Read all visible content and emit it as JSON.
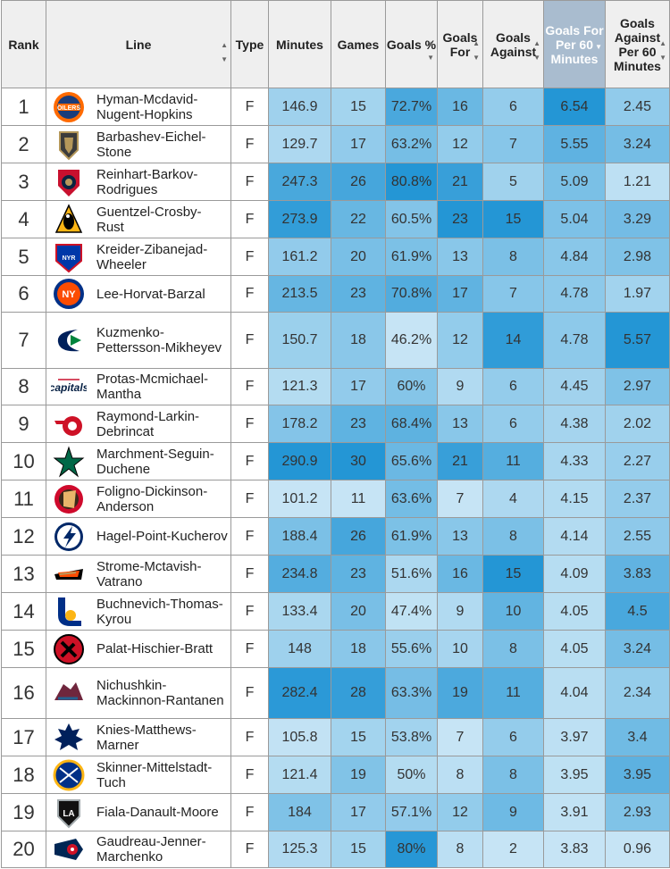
{
  "headers": {
    "rank": "Rank",
    "line": "Line",
    "type": "Type",
    "minutes": "Minutes",
    "games": "Games",
    "gpct": "Goals %",
    "gf": "Goals For",
    "ga": "Goals Against",
    "gf60": "Goals For Per 60 Minutes",
    "ga60": "Goals Against Per 60 Minutes"
  },
  "colors": {
    "sorted_header": "#a9bccf",
    "scale_low": "#e6f4fb",
    "scale_high": "#0e8bd1"
  },
  "rows": [
    {
      "rank": "1",
      "line": "Hyman-Mcdavid-Nugent-Hopkins",
      "team_icon": "oilers-logo-icon",
      "type": "F",
      "minutes": "146.9",
      "games": "15",
      "gpct": "72.7%",
      "gf": "16",
      "ga": "6",
      "gf60": "6.54",
      "ga60": "2.45"
    },
    {
      "rank": "2",
      "line": "Barbashev-Eichel-Stone",
      "team_icon": "golden-knights-logo-icon",
      "type": "F",
      "minutes": "129.7",
      "games": "17",
      "gpct": "63.2%",
      "gf": "12",
      "ga": "7",
      "gf60": "5.55",
      "ga60": "3.24"
    },
    {
      "rank": "3",
      "line": "Reinhart-Barkov-Rodrigues",
      "team_icon": "panthers-logo-icon",
      "type": "F",
      "minutes": "247.3",
      "games": "26",
      "gpct": "80.8%",
      "gf": "21",
      "ga": "5",
      "gf60": "5.09",
      "ga60": "1.21"
    },
    {
      "rank": "4",
      "line": "Guentzel-Crosby-Rust",
      "team_icon": "penguins-logo-icon",
      "type": "F",
      "minutes": "273.9",
      "games": "22",
      "gpct": "60.5%",
      "gf": "23",
      "ga": "15",
      "gf60": "5.04",
      "ga60": "3.29"
    },
    {
      "rank": "5",
      "line": "Kreider-Zibanejad-Wheeler",
      "team_icon": "rangers-logo-icon",
      "type": "F",
      "minutes": "161.2",
      "games": "20",
      "gpct": "61.9%",
      "gf": "13",
      "ga": "8",
      "gf60": "4.84",
      "ga60": "2.98"
    },
    {
      "rank": "6",
      "line": "Lee-Horvat-Barzal",
      "team_icon": "islanders-logo-icon",
      "type": "F",
      "minutes": "213.5",
      "games": "23",
      "gpct": "70.8%",
      "gf": "17",
      "ga": "7",
      "gf60": "4.78",
      "ga60": "1.97"
    },
    {
      "rank": "7",
      "line": "Kuzmenko-Pettersson-Mikheyev",
      "team_icon": "canucks-logo-icon",
      "type": "F",
      "minutes": "150.7",
      "games": "18",
      "gpct": "46.2%",
      "gf": "12",
      "ga": "14",
      "gf60": "4.78",
      "ga60": "5.57"
    },
    {
      "rank": "8",
      "line": "Protas-Mcmichael-Mantha",
      "team_icon": "capitals-logo-icon",
      "type": "F",
      "minutes": "121.3",
      "games": "17",
      "gpct": "60%",
      "gf": "9",
      "ga": "6",
      "gf60": "4.45",
      "ga60": "2.97"
    },
    {
      "rank": "9",
      "line": "Raymond-Larkin-Debrincat",
      "team_icon": "red-wings-logo-icon",
      "type": "F",
      "minutes": "178.2",
      "games": "23",
      "gpct": "68.4%",
      "gf": "13",
      "ga": "6",
      "gf60": "4.38",
      "ga60": "2.02"
    },
    {
      "rank": "10",
      "line": "Marchment-Seguin-Duchene",
      "team_icon": "stars-logo-icon",
      "type": "F",
      "minutes": "290.9",
      "games": "30",
      "gpct": "65.6%",
      "gf": "21",
      "ga": "11",
      "gf60": "4.33",
      "ga60": "2.27"
    },
    {
      "rank": "11",
      "line": "Foligno-Dickinson-Anderson",
      "team_icon": "blackhawks-logo-icon",
      "type": "F",
      "minutes": "101.2",
      "games": "11",
      "gpct": "63.6%",
      "gf": "7",
      "ga": "4",
      "gf60": "4.15",
      "ga60": "2.37"
    },
    {
      "rank": "12",
      "line": "Hagel-Point-Kucherov",
      "team_icon": "lightning-logo-icon",
      "type": "F",
      "minutes": "188.4",
      "games": "26",
      "gpct": "61.9%",
      "gf": "13",
      "ga": "8",
      "gf60": "4.14",
      "ga60": "2.55"
    },
    {
      "rank": "13",
      "line": "Strome-Mctavish-Vatrano",
      "team_icon": "ducks-logo-icon",
      "type": "F",
      "minutes": "234.8",
      "games": "23",
      "gpct": "51.6%",
      "gf": "16",
      "ga": "15",
      "gf60": "4.09",
      "ga60": "3.83"
    },
    {
      "rank": "14",
      "line": "Buchnevich-Thomas-Kyrou",
      "team_icon": "blues-logo-icon",
      "type": "F",
      "minutes": "133.4",
      "games": "20",
      "gpct": "47.4%",
      "gf": "9",
      "ga": "10",
      "gf60": "4.05",
      "ga60": "4.5"
    },
    {
      "rank": "15",
      "line": "Palat-Hischier-Bratt",
      "team_icon": "devils-logo-icon",
      "type": "F",
      "minutes": "148",
      "games": "18",
      "gpct": "55.6%",
      "gf": "10",
      "ga": "8",
      "gf60": "4.05",
      "ga60": "3.24"
    },
    {
      "rank": "16",
      "line": "Nichushkin-Mackinnon-Rantanen",
      "team_icon": "avalanche-logo-icon",
      "type": "F",
      "minutes": "282.4",
      "games": "28",
      "gpct": "63.3%",
      "gf": "19",
      "ga": "11",
      "gf60": "4.04",
      "ga60": "2.34"
    },
    {
      "rank": "17",
      "line": "Knies-Matthews-Marner",
      "team_icon": "maple-leafs-logo-icon",
      "type": "F",
      "minutes": "105.8",
      "games": "15",
      "gpct": "53.8%",
      "gf": "7",
      "ga": "6",
      "gf60": "3.97",
      "ga60": "3.4"
    },
    {
      "rank": "18",
      "line": "Skinner-Mittelstadt-Tuch",
      "team_icon": "sabres-logo-icon",
      "type": "F",
      "minutes": "121.4",
      "games": "19",
      "gpct": "50%",
      "gf": "8",
      "ga": "8",
      "gf60": "3.95",
      "ga60": "3.95"
    },
    {
      "rank": "19",
      "line": "Fiala-Danault-Moore",
      "team_icon": "kings-logo-icon",
      "type": "F",
      "minutes": "184",
      "games": "17",
      "gpct": "57.1%",
      "gf": "12",
      "ga": "9",
      "gf60": "3.91",
      "ga60": "2.93"
    },
    {
      "rank": "20",
      "line": "Gaudreau-Jenner-Marchenko",
      "team_icon": "blue-jackets-logo-icon",
      "type": "F",
      "minutes": "125.3",
      "games": "15",
      "gpct": "80%",
      "gf": "8",
      "ga": "2",
      "gf60": "3.83",
      "ga60": "0.96"
    }
  ]
}
